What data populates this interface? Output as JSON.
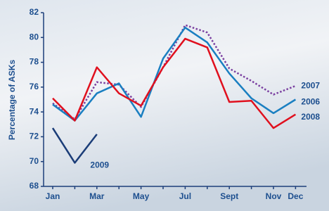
{
  "chart_data": {
    "type": "line",
    "y_label": "Percentage of ASKs",
    "categories": [
      "Jan",
      null,
      "Mar",
      null,
      "May",
      null,
      "Jul",
      null,
      "Sept",
      null,
      "Nov",
      "Dec"
    ],
    "ylim": [
      68,
      82
    ],
    "yticks": [
      68,
      70,
      72,
      74,
      76,
      78,
      80,
      82
    ],
    "series": [
      {
        "name": "2007",
        "color": "#7a3fa0",
        "dashed": true,
        "values": [
          74.7,
          73.4,
          76.4,
          76.2,
          74.4,
          77.6,
          81.0,
          80.4,
          77.5,
          76.5,
          75.4,
          76.1
        ]
      },
      {
        "name": "2006",
        "color": "#1a7fc1",
        "values": [
          74.6,
          73.3,
          75.5,
          76.3,
          73.6,
          78.3,
          80.8,
          79.6,
          77.1,
          75.1,
          73.9,
          75.0
        ]
      },
      {
        "name": "2008",
        "color": "#e0101e",
        "values": [
          75.1,
          73.3,
          77.6,
          75.5,
          74.5,
          77.6,
          79.9,
          79.2,
          74.8,
          74.9,
          72.7,
          73.8
        ]
      },
      {
        "name": "2009",
        "color": "#1b3d78",
        "values": [
          72.7,
          69.9,
          72.2,
          null,
          null,
          null,
          null,
          null,
          null,
          null,
          null,
          null
        ]
      }
    ]
  }
}
